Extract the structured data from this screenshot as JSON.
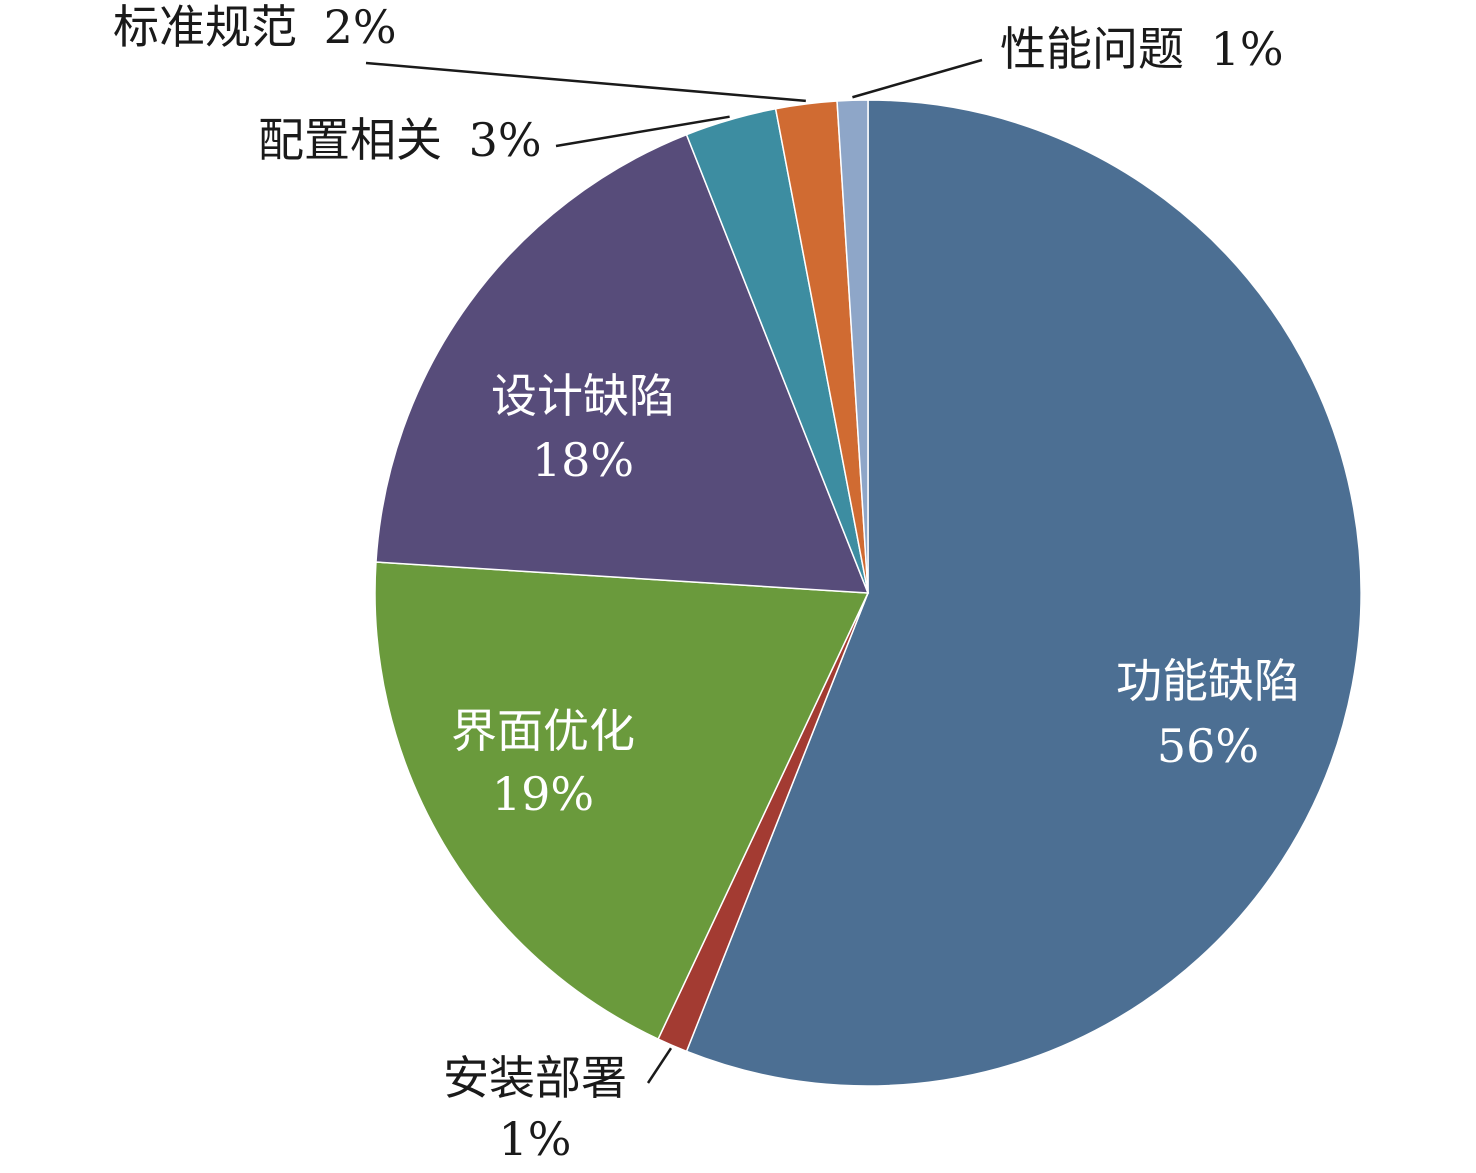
{
  "chart_data": {
    "type": "pie",
    "start_angle_deg": 0,
    "direction": "clockwise",
    "slices": [
      {
        "name": "功能缺陷",
        "value": 56,
        "label": "56%",
        "color": "#4c6f93"
      },
      {
        "name": "安装部署",
        "value": 1,
        "label": "1%",
        "color": "#a33b32"
      },
      {
        "name": "界面优化",
        "value": 19,
        "label": "19%",
        "color": "#6a9a3c"
      },
      {
        "name": "设计缺陷",
        "value": 18,
        "label": "18%",
        "color": "#574c7a"
      },
      {
        "name": "配置相关",
        "value": 3,
        "label": "3%",
        "color": "#3d8da1"
      },
      {
        "name": "标准规范",
        "value": 2,
        "label": "2%",
        "color": "#d06b32"
      },
      {
        "name": "性能问题",
        "value": 1,
        "label": "1%",
        "color": "#8ea6c8"
      }
    ]
  }
}
